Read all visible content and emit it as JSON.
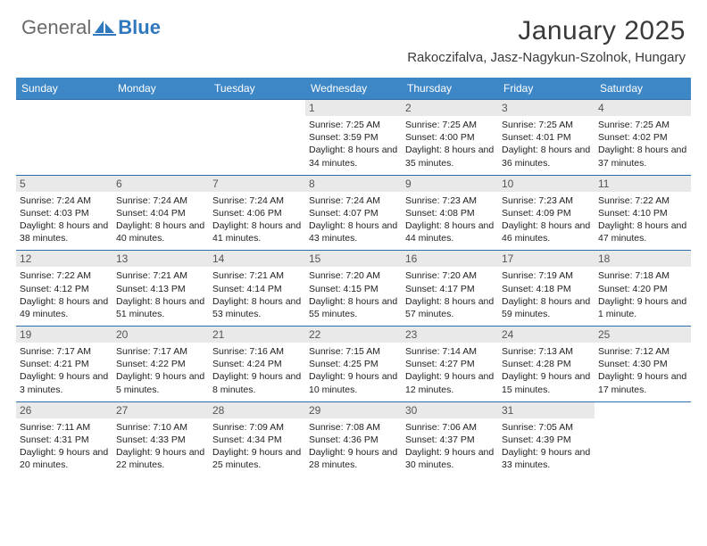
{
  "brand": {
    "part1": "General",
    "part2": "Blue"
  },
  "title": "January 2025",
  "location": "Rakoczifalva, Jasz-Nagykun-Szolnok, Hungary",
  "colors": {
    "header_bg": "#3d87c7",
    "header_text": "#ffffff",
    "daybar_bg": "#e9e9e9",
    "cell_border": "#2f6ea8",
    "brand_gray": "#6a6a6a",
    "brand_blue": "#2f78bd"
  },
  "day_names": [
    "Sunday",
    "Monday",
    "Tuesday",
    "Wednesday",
    "Thursday",
    "Friday",
    "Saturday"
  ],
  "weeks": [
    [
      {
        "blank": true
      },
      {
        "blank": true
      },
      {
        "blank": true
      },
      {
        "day": "1",
        "sunrise": "Sunrise: 7:25 AM",
        "sunset": "Sunset: 3:59 PM",
        "daylight": "Daylight: 8 hours and 34 minutes."
      },
      {
        "day": "2",
        "sunrise": "Sunrise: 7:25 AM",
        "sunset": "Sunset: 4:00 PM",
        "daylight": "Daylight: 8 hours and 35 minutes."
      },
      {
        "day": "3",
        "sunrise": "Sunrise: 7:25 AM",
        "sunset": "Sunset: 4:01 PM",
        "daylight": "Daylight: 8 hours and 36 minutes."
      },
      {
        "day": "4",
        "sunrise": "Sunrise: 7:25 AM",
        "sunset": "Sunset: 4:02 PM",
        "daylight": "Daylight: 8 hours and 37 minutes."
      }
    ],
    [
      {
        "day": "5",
        "sunrise": "Sunrise: 7:24 AM",
        "sunset": "Sunset: 4:03 PM",
        "daylight": "Daylight: 8 hours and 38 minutes."
      },
      {
        "day": "6",
        "sunrise": "Sunrise: 7:24 AM",
        "sunset": "Sunset: 4:04 PM",
        "daylight": "Daylight: 8 hours and 40 minutes."
      },
      {
        "day": "7",
        "sunrise": "Sunrise: 7:24 AM",
        "sunset": "Sunset: 4:06 PM",
        "daylight": "Daylight: 8 hours and 41 minutes."
      },
      {
        "day": "8",
        "sunrise": "Sunrise: 7:24 AM",
        "sunset": "Sunset: 4:07 PM",
        "daylight": "Daylight: 8 hours and 43 minutes."
      },
      {
        "day": "9",
        "sunrise": "Sunrise: 7:23 AM",
        "sunset": "Sunset: 4:08 PM",
        "daylight": "Daylight: 8 hours and 44 minutes."
      },
      {
        "day": "10",
        "sunrise": "Sunrise: 7:23 AM",
        "sunset": "Sunset: 4:09 PM",
        "daylight": "Daylight: 8 hours and 46 minutes."
      },
      {
        "day": "11",
        "sunrise": "Sunrise: 7:22 AM",
        "sunset": "Sunset: 4:10 PM",
        "daylight": "Daylight: 8 hours and 47 minutes."
      }
    ],
    [
      {
        "day": "12",
        "sunrise": "Sunrise: 7:22 AM",
        "sunset": "Sunset: 4:12 PM",
        "daylight": "Daylight: 8 hours and 49 minutes."
      },
      {
        "day": "13",
        "sunrise": "Sunrise: 7:21 AM",
        "sunset": "Sunset: 4:13 PM",
        "daylight": "Daylight: 8 hours and 51 minutes."
      },
      {
        "day": "14",
        "sunrise": "Sunrise: 7:21 AM",
        "sunset": "Sunset: 4:14 PM",
        "daylight": "Daylight: 8 hours and 53 minutes."
      },
      {
        "day": "15",
        "sunrise": "Sunrise: 7:20 AM",
        "sunset": "Sunset: 4:15 PM",
        "daylight": "Daylight: 8 hours and 55 minutes."
      },
      {
        "day": "16",
        "sunrise": "Sunrise: 7:20 AM",
        "sunset": "Sunset: 4:17 PM",
        "daylight": "Daylight: 8 hours and 57 minutes."
      },
      {
        "day": "17",
        "sunrise": "Sunrise: 7:19 AM",
        "sunset": "Sunset: 4:18 PM",
        "daylight": "Daylight: 8 hours and 59 minutes."
      },
      {
        "day": "18",
        "sunrise": "Sunrise: 7:18 AM",
        "sunset": "Sunset: 4:20 PM",
        "daylight": "Daylight: 9 hours and 1 minute."
      }
    ],
    [
      {
        "day": "19",
        "sunrise": "Sunrise: 7:17 AM",
        "sunset": "Sunset: 4:21 PM",
        "daylight": "Daylight: 9 hours and 3 minutes."
      },
      {
        "day": "20",
        "sunrise": "Sunrise: 7:17 AM",
        "sunset": "Sunset: 4:22 PM",
        "daylight": "Daylight: 9 hours and 5 minutes."
      },
      {
        "day": "21",
        "sunrise": "Sunrise: 7:16 AM",
        "sunset": "Sunset: 4:24 PM",
        "daylight": "Daylight: 9 hours and 8 minutes."
      },
      {
        "day": "22",
        "sunrise": "Sunrise: 7:15 AM",
        "sunset": "Sunset: 4:25 PM",
        "daylight": "Daylight: 9 hours and 10 minutes."
      },
      {
        "day": "23",
        "sunrise": "Sunrise: 7:14 AM",
        "sunset": "Sunset: 4:27 PM",
        "daylight": "Daylight: 9 hours and 12 minutes."
      },
      {
        "day": "24",
        "sunrise": "Sunrise: 7:13 AM",
        "sunset": "Sunset: 4:28 PM",
        "daylight": "Daylight: 9 hours and 15 minutes."
      },
      {
        "day": "25",
        "sunrise": "Sunrise: 7:12 AM",
        "sunset": "Sunset: 4:30 PM",
        "daylight": "Daylight: 9 hours and 17 minutes."
      }
    ],
    [
      {
        "day": "26",
        "sunrise": "Sunrise: 7:11 AM",
        "sunset": "Sunset: 4:31 PM",
        "daylight": "Daylight: 9 hours and 20 minutes."
      },
      {
        "day": "27",
        "sunrise": "Sunrise: 7:10 AM",
        "sunset": "Sunset: 4:33 PM",
        "daylight": "Daylight: 9 hours and 22 minutes."
      },
      {
        "day": "28",
        "sunrise": "Sunrise: 7:09 AM",
        "sunset": "Sunset: 4:34 PM",
        "daylight": "Daylight: 9 hours and 25 minutes."
      },
      {
        "day": "29",
        "sunrise": "Sunrise: 7:08 AM",
        "sunset": "Sunset: 4:36 PM",
        "daylight": "Daylight: 9 hours and 28 minutes."
      },
      {
        "day": "30",
        "sunrise": "Sunrise: 7:06 AM",
        "sunset": "Sunset: 4:37 PM",
        "daylight": "Daylight: 9 hours and 30 minutes."
      },
      {
        "day": "31",
        "sunrise": "Sunrise: 7:05 AM",
        "sunset": "Sunset: 4:39 PM",
        "daylight": "Daylight: 9 hours and 33 minutes."
      },
      {
        "blank": true
      }
    ]
  ]
}
